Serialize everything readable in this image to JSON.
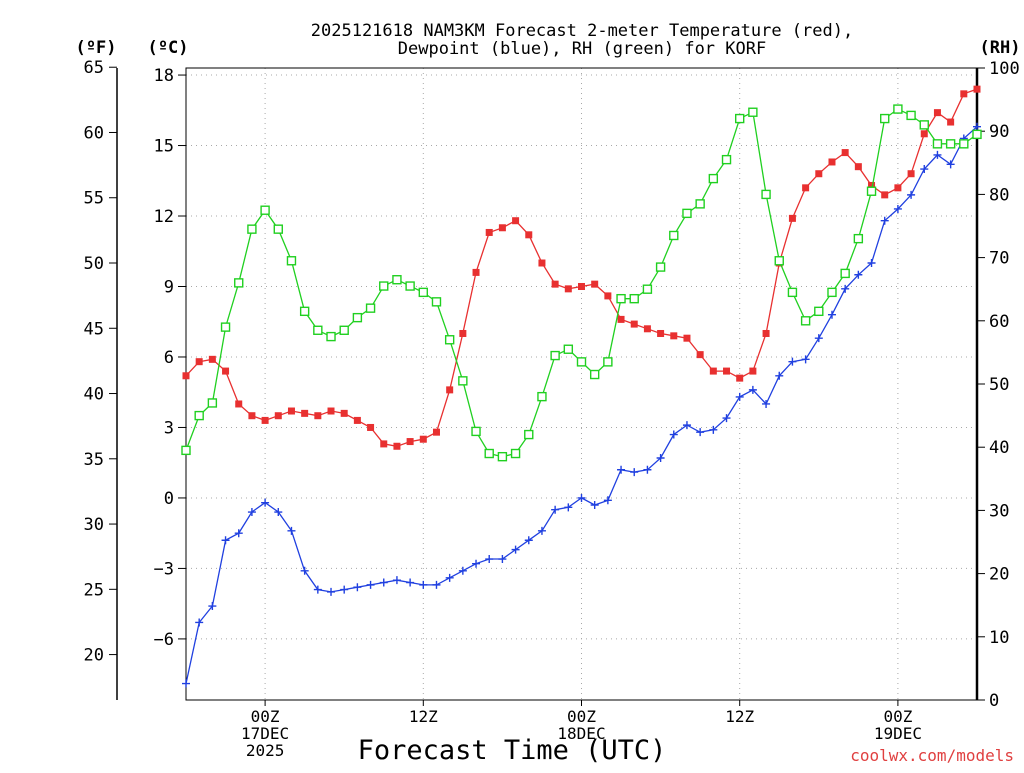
{
  "chart_data": {
    "type": "line",
    "title_line1": "2025121618 NAM3KM Forecast 2-meter Temperature (red),",
    "title_line2": "Dewpoint (blue), RH (green) for KORF",
    "xlabel": "Forecast Time (UTC)",
    "watermark": "coolwx.com/models",
    "unit_f": "(ºF)",
    "unit_c": "(ºC)",
    "unit_rh": "(RH)",
    "x_hours_range": [
      0,
      60
    ],
    "x_ticks": [
      {
        "h": 6,
        "l1": "00Z",
        "l2": "17DEC",
        "l3": "2025"
      },
      {
        "h": 18,
        "l1": "12Z",
        "l2": "",
        "l3": ""
      },
      {
        "h": 30,
        "l1": "00Z",
        "l2": "18DEC",
        "l3": ""
      },
      {
        "h": 42,
        "l1": "12Z",
        "l2": "",
        "l3": ""
      },
      {
        "h": 54,
        "l1": "00Z",
        "l2": "19DEC",
        "l3": ""
      }
    ],
    "c_range": [
      -8.6,
      18.3
    ],
    "c_ticks": [
      "18",
      "15",
      "12",
      "9",
      "6",
      "3",
      "0",
      "−3",
      "−6"
    ],
    "f_ticks": [
      "65",
      "60",
      "55",
      "50",
      "45",
      "40",
      "35",
      "30",
      "25",
      "20"
    ],
    "rh_range": [
      0,
      100
    ],
    "rh_ticks": [
      "100",
      "90",
      "80",
      "70",
      "60",
      "50",
      "40",
      "30",
      "20",
      "10",
      "0"
    ],
    "colors": {
      "temperature": "#e83030",
      "dewpoint": "#2040e0",
      "rh": "#20d020",
      "watermark": "#e04040"
    },
    "series": [
      {
        "name": "Temperature (red)",
        "units": "C",
        "values": [
          5.2,
          5.8,
          5.9,
          5.4,
          4.0,
          3.5,
          3.3,
          3.5,
          3.7,
          3.6,
          3.5,
          3.7,
          3.6,
          3.3,
          3.0,
          2.3,
          2.2,
          2.4,
          2.5,
          2.8,
          4.6,
          7.0,
          9.6,
          11.3,
          11.5,
          11.8,
          11.2,
          10.0,
          9.1,
          8.9,
          9.0,
          9.1,
          8.6,
          7.6,
          7.4,
          7.2,
          7.0,
          6.9,
          6.8,
          6.1,
          5.4,
          5.4,
          5.1,
          5.4,
          7.0,
          10.0,
          11.9,
          13.2,
          13.8,
          14.3,
          14.7,
          14.1,
          13.3,
          12.9,
          13.2,
          13.8,
          15.5,
          16.4,
          16.0,
          17.2,
          17.4
        ]
      },
      {
        "name": "Dewpoint (blue)",
        "units": "C",
        "values": [
          -7.9,
          -5.3,
          -4.6,
          -1.8,
          -1.5,
          -0.6,
          -0.2,
          -0.6,
          -1.4,
          -3.1,
          -3.9,
          -4.0,
          -3.9,
          -3.8,
          -3.7,
          -3.6,
          -3.5,
          -3.6,
          -3.7,
          -3.7,
          -3.4,
          -3.1,
          -2.8,
          -2.6,
          -2.6,
          -2.2,
          -1.8,
          -1.4,
          -0.5,
          -0.4,
          -0.0,
          -0.3,
          -0.1,
          1.2,
          1.1,
          1.2,
          1.7,
          2.7,
          3.1,
          2.8,
          2.9,
          3.4,
          4.3,
          4.6,
          4.0,
          5.2,
          5.8,
          5.9,
          6.8,
          7.8,
          8.9,
          9.5,
          10.0,
          11.8,
          12.3,
          12.9,
          14.0,
          14.6,
          14.2,
          15.3,
          15.8
        ]
      },
      {
        "name": "RH (green)",
        "units": "%",
        "values": [
          39.5,
          45.0,
          47.0,
          59.0,
          66.0,
          74.5,
          77.5,
          74.5,
          69.5,
          61.5,
          58.5,
          57.5,
          58.5,
          60.5,
          62.0,
          65.5,
          66.5,
          65.5,
          64.5,
          63.0,
          57.0,
          50.5,
          42.5,
          39.0,
          38.5,
          39.0,
          42.0,
          48.0,
          54.5,
          55.5,
          53.5,
          51.5,
          53.5,
          63.5,
          63.5,
          65.0,
          68.5,
          73.5,
          77.0,
          78.5,
          82.5,
          85.5,
          92.0,
          93.0,
          80.0,
          69.5,
          64.5,
          60.0,
          61.5,
          64.5,
          67.5,
          73.0,
          80.5,
          92.0,
          93.5,
          92.5,
          91.0,
          88.0,
          88.0,
          88.0,
          89.5
        ]
      }
    ]
  }
}
